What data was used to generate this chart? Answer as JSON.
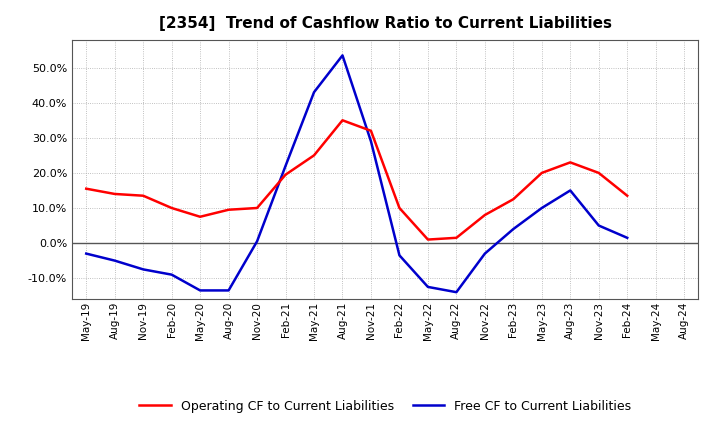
{
  "title": "[2354]  Trend of Cashflow Ratio to Current Liabilities",
  "x_labels": [
    "May-19",
    "Aug-19",
    "Nov-19",
    "Feb-20",
    "May-20",
    "Aug-20",
    "Nov-20",
    "Feb-21",
    "May-21",
    "Aug-21",
    "Nov-21",
    "Feb-22",
    "May-22",
    "Aug-22",
    "Nov-22",
    "Feb-23",
    "May-23",
    "Aug-23",
    "Nov-23",
    "Feb-24",
    "May-24",
    "Aug-24"
  ],
  "operating_cf": [
    15.5,
    14.0,
    13.5,
    10.0,
    7.5,
    9.5,
    10.0,
    19.5,
    25.0,
    35.0,
    32.0,
    10.0,
    1.0,
    1.5,
    8.0,
    12.5,
    20.0,
    23.0,
    20.0,
    13.5,
    null,
    null
  ],
  "free_cf": [
    -3.0,
    -5.0,
    -7.5,
    -9.0,
    -13.5,
    -13.5,
    0.5,
    22.0,
    43.0,
    53.5,
    29.0,
    -3.5,
    -12.5,
    -14.0,
    -3.0,
    4.0,
    10.0,
    15.0,
    5.0,
    1.5,
    null,
    null
  ],
  "operating_color": "#ff0000",
  "free_color": "#0000cc",
  "ylim": [
    -16,
    58
  ],
  "yticks": [
    -10.0,
    0.0,
    10.0,
    20.0,
    30.0,
    40.0,
    50.0
  ],
  "background_color": "#ffffff",
  "grid_color": "#999999",
  "legend_labels": [
    "Operating CF to Current Liabilities",
    "Free CF to Current Liabilities"
  ]
}
